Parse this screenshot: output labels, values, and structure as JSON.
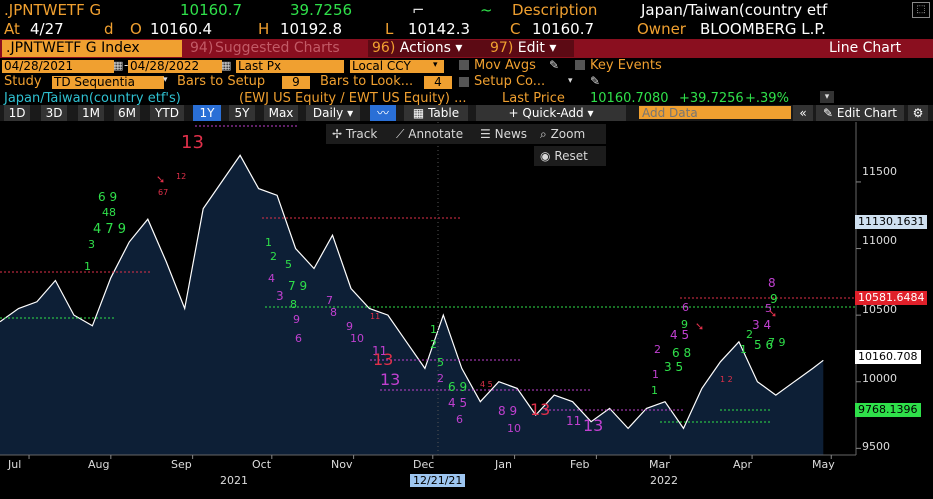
{
  "header": {
    "ticker": ".JPNTWETF G",
    "last": "10160.7",
    "change": "39.7256",
    "desc_label": "Description",
    "desc_value": "Japan/Taiwan(country etf",
    "at_label": "At",
    "at_date": "4/27",
    "d_label": "d",
    "o_label": "O",
    "o_value": "10160.4",
    "h_label": "H",
    "h_value": "10192.8",
    "l_label": "L",
    "l_value": "10142.3",
    "c_label": "C",
    "c_value": "10160.7",
    "owner_label": "Owner",
    "owner_value": "BLOOMBERG L.P."
  },
  "menubar": {
    "security": ".JPNTWETF G Index",
    "suggested_num": "94)",
    "suggested": "Suggested Charts",
    "actions_num": "96)",
    "actions": "Actions",
    "edit_num": "97)",
    "edit": "Edit",
    "chart_type": "Line Chart"
  },
  "settings": {
    "start_date": "04/28/2021",
    "end_date": "04/28/2022",
    "price_field": "Last Px",
    "currency": "Local CCY",
    "mov_avgs": "Mov Avgs",
    "key_events": "Key Events",
    "study_label": "Study",
    "study_value": "TD Sequentia",
    "bars_setup_label": "Bars to Setup",
    "bars_setup_value": "9",
    "bars_look_label": "Bars to Look...",
    "bars_look_value": "4",
    "setup_co": "Setup Co..."
  },
  "legend": {
    "name": "Japan/Taiwan(country etf's)",
    "formula": "(EWJ US Equity / EWT US Equity) ...",
    "last_price_label": "Last Price",
    "last_price": "10160.7080",
    "chg": "+39.7256",
    "pct": "+.39%"
  },
  "toolbar": {
    "periods": [
      "1D",
      "3D",
      "1M",
      "6M",
      "YTD",
      "1Y",
      "5Y",
      "Max"
    ],
    "selected": "1Y",
    "frequency": "Daily",
    "table": "Table",
    "quick_add": "+ Quick-Add",
    "add_data_placeholder": "Add Data",
    "edit_chart": "Edit Chart"
  },
  "tools": {
    "track": "Track",
    "annotate": "Annotate",
    "news": "News",
    "zoom": "Zoom",
    "reset": "Reset"
  },
  "axis": {
    "y_ticks": [
      "11500",
      "11000",
      "10500",
      "10000",
      "9500"
    ],
    "x_ticks": [
      "Jul",
      "Aug",
      "Sep",
      "Oct",
      "Nov",
      "Dec",
      "Jan",
      "Feb",
      "Mar",
      "Apr",
      "May"
    ],
    "years": [
      "2021",
      "2022"
    ],
    "cursor_date": "12/21/21",
    "flag_upper": "11130.1631",
    "flag_red": "10581.6484",
    "flag_last": "10160.708",
    "flag_green": "9768.1396"
  },
  "td_counts": {
    "big_13_sep": "13",
    "big_13_nov": "13",
    "big_13_dec": "13",
    "big_13_jan": "13",
    "big_13_feb": "13",
    "big_9_jul": "9",
    "big_8_apr": "8"
  },
  "colors": {
    "amber": "#f0a030",
    "bar_red": "#8a0f1f",
    "line": "#ffffff",
    "area": "#0d1f36",
    "green": "#2fe04a",
    "magenta": "#c040d0",
    "red": "#e0304a"
  },
  "chart_data": {
    "type": "area",
    "title": "",
    "xlabel": "",
    "ylabel": "",
    "ylim": [
      9450,
      11950
    ],
    "x_range": [
      "2021-06-20",
      "2022-05-10"
    ],
    "series": [
      {
        "values": [
          [
            "2021-06-20",
            10450
          ],
          [
            "2021-06-27",
            10550
          ],
          [
            "2021-07-04",
            10600
          ],
          [
            "2021-07-11",
            10760
          ],
          [
            "2021-07-18",
            10500
          ],
          [
            "2021-07-25",
            10420
          ],
          [
            "2021-08-01",
            10780
          ],
          [
            "2021-08-08",
            11050
          ],
          [
            "2021-08-15",
            11220
          ],
          [
            "2021-08-22",
            10900
          ],
          [
            "2021-08-29",
            10550
          ],
          [
            "2021-09-05",
            11300
          ],
          [
            "2021-09-12",
            11500
          ],
          [
            "2021-09-19",
            11700
          ],
          [
            "2021-09-26",
            11450
          ],
          [
            "2021-10-03",
            11400
          ],
          [
            "2021-10-10",
            11000
          ],
          [
            "2021-10-17",
            10850
          ],
          [
            "2021-10-24",
            11100
          ],
          [
            "2021-10-31",
            10700
          ],
          [
            "2021-11-07",
            10550
          ],
          [
            "2021-11-14",
            10500
          ],
          [
            "2021-11-21",
            10300
          ],
          [
            "2021-11-28",
            10100
          ],
          [
            "2021-12-05",
            10500
          ],
          [
            "2021-12-12",
            10100
          ],
          [
            "2021-12-19",
            9850
          ],
          [
            "2021-12-26",
            10000
          ],
          [
            "2022-01-02",
            9950
          ],
          [
            "2022-01-09",
            9750
          ],
          [
            "2022-01-16",
            9900
          ],
          [
            "2022-01-23",
            9850
          ],
          [
            "2022-01-30",
            9700
          ],
          [
            "2022-02-06",
            9800
          ],
          [
            "2022-02-13",
            9650
          ],
          [
            "2022-02-20",
            9800
          ],
          [
            "2022-02-27",
            9850
          ],
          [
            "2022-03-06",
            9650
          ],
          [
            "2022-03-13",
            9950
          ],
          [
            "2022-03-20",
            10150
          ],
          [
            "2022-03-27",
            10300
          ],
          [
            "2022-04-03",
            10000
          ],
          [
            "2022-04-10",
            9900
          ],
          [
            "2022-04-17",
            10000
          ],
          [
            "2022-04-24",
            10100
          ],
          [
            "2022-04-28",
            10160.7
          ]
        ]
      }
    ],
    "grid": false,
    "legend": "top-left"
  }
}
